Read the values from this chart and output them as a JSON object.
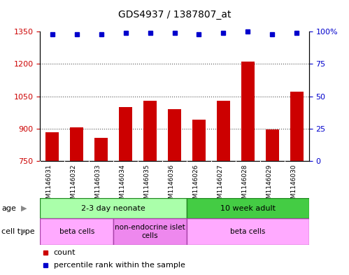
{
  "title": "GDS4937 / 1387807_at",
  "samples": [
    "GSM1146031",
    "GSM1146032",
    "GSM1146033",
    "GSM1146034",
    "GSM1146035",
    "GSM1146036",
    "GSM1146026",
    "GSM1146027",
    "GSM1146028",
    "GSM1146029",
    "GSM1146030"
  ],
  "counts": [
    882,
    905,
    858,
    1000,
    1030,
    990,
    940,
    1030,
    1210,
    895,
    1070
  ],
  "percentiles": [
    98,
    98,
    98,
    99,
    99,
    99,
    98,
    99,
    100,
    98,
    99
  ],
  "ylim_left": [
    750,
    1350
  ],
  "ylim_right": [
    0,
    100
  ],
  "yticks_left": [
    750,
    900,
    1050,
    1200,
    1350
  ],
  "yticks_right": [
    0,
    25,
    50,
    75,
    100
  ],
  "bar_color": "#cc0000",
  "dot_color": "#0000cc",
  "age_groups": [
    {
      "label": "2-3 day neonate",
      "start": 0,
      "end": 6,
      "color": "#aaffaa"
    },
    {
      "label": "10 week adult",
      "start": 6,
      "end": 11,
      "color": "#44cc44"
    }
  ],
  "cell_type_groups": [
    {
      "label": "beta cells",
      "start": 0,
      "end": 3,
      "color": "#ffaaff"
    },
    {
      "label": "non-endocrine islet\ncells",
      "start": 3,
      "end": 6,
      "color": "#ee88ee"
    },
    {
      "label": "beta cells",
      "start": 6,
      "end": 11,
      "color": "#ffaaff"
    }
  ],
  "legend_items": [
    {
      "label": "count",
      "color": "#cc0000"
    },
    {
      "label": "percentile rank within the sample",
      "color": "#0000cc"
    }
  ],
  "grid_color": "#555555",
  "bg_color": "#ffffff",
  "axis_color_left": "#cc0000",
  "axis_color_right": "#0000cc",
  "xticklabel_bg": "#dddddd"
}
